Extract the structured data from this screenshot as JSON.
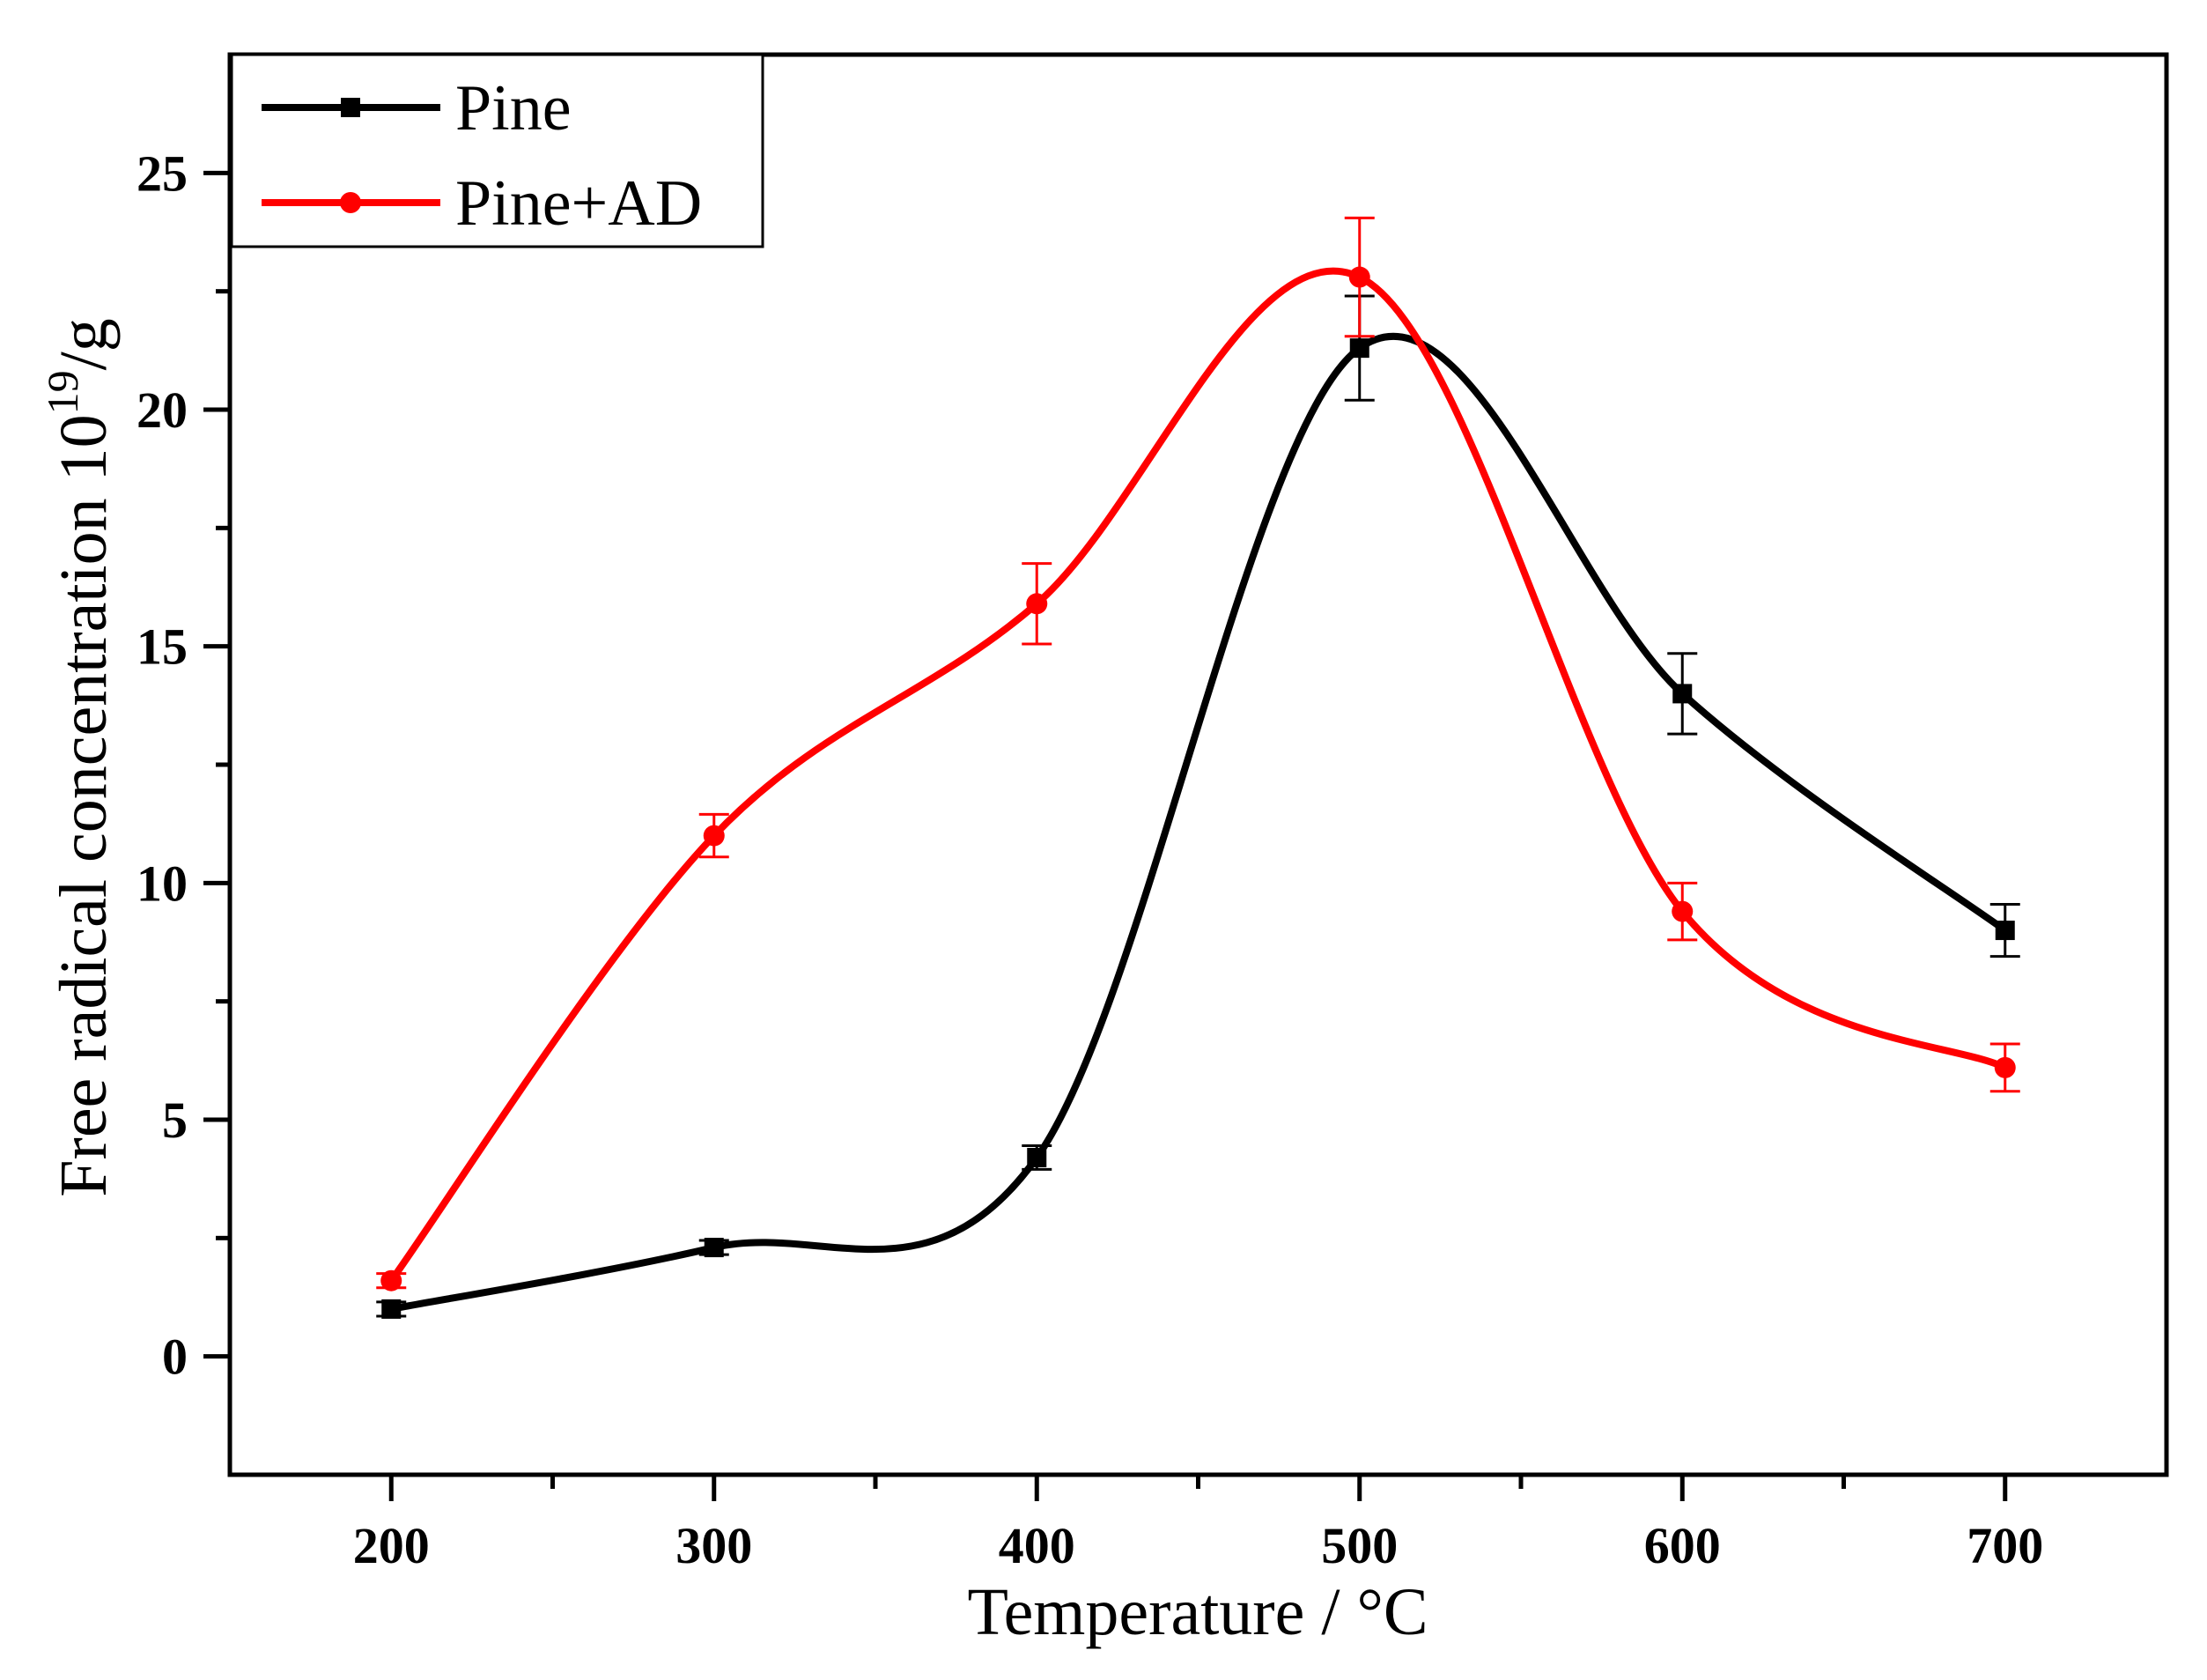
{
  "chart_data": {
    "type": "line",
    "title": "",
    "xlabel": "Temperature / °C",
    "ylabel_main": "Free radical concentration 10",
    "ylabel_sup": "19",
    "ylabel_tail": "/g",
    "xlim": [
      150,
      750
    ],
    "ylim": [
      -2.5,
      27.5
    ],
    "x_ticks": [
      200,
      300,
      400,
      500,
      600,
      700
    ],
    "x_minor": [
      250,
      350,
      450,
      550,
      650
    ],
    "y_ticks": [
      0,
      5,
      10,
      15,
      20,
      25
    ],
    "y_minor": [
      2.5,
      7.5,
      12.5,
      17.5,
      22.5
    ],
    "legend_position": "top-left",
    "series": [
      {
        "name": "Pine",
        "color": "#000000",
        "marker": "square",
        "x": [
          200,
          300,
          400,
          500,
          600,
          700
        ],
        "values": [
          1.0,
          2.3,
          4.2,
          21.3,
          14.0,
          9.0
        ],
        "errors": [
          0.15,
          0.15,
          0.25,
          1.1,
          0.85,
          0.55
        ]
      },
      {
        "name": "Pine+AD",
        "color": "#ff0000",
        "marker": "circle",
        "x": [
          200,
          300,
          400,
          500,
          600,
          700
        ],
        "values": [
          1.6,
          11.0,
          15.9,
          22.8,
          9.4,
          6.1
        ],
        "errors": [
          0.15,
          0.45,
          0.85,
          1.25,
          0.6,
          0.5
        ]
      }
    ]
  }
}
